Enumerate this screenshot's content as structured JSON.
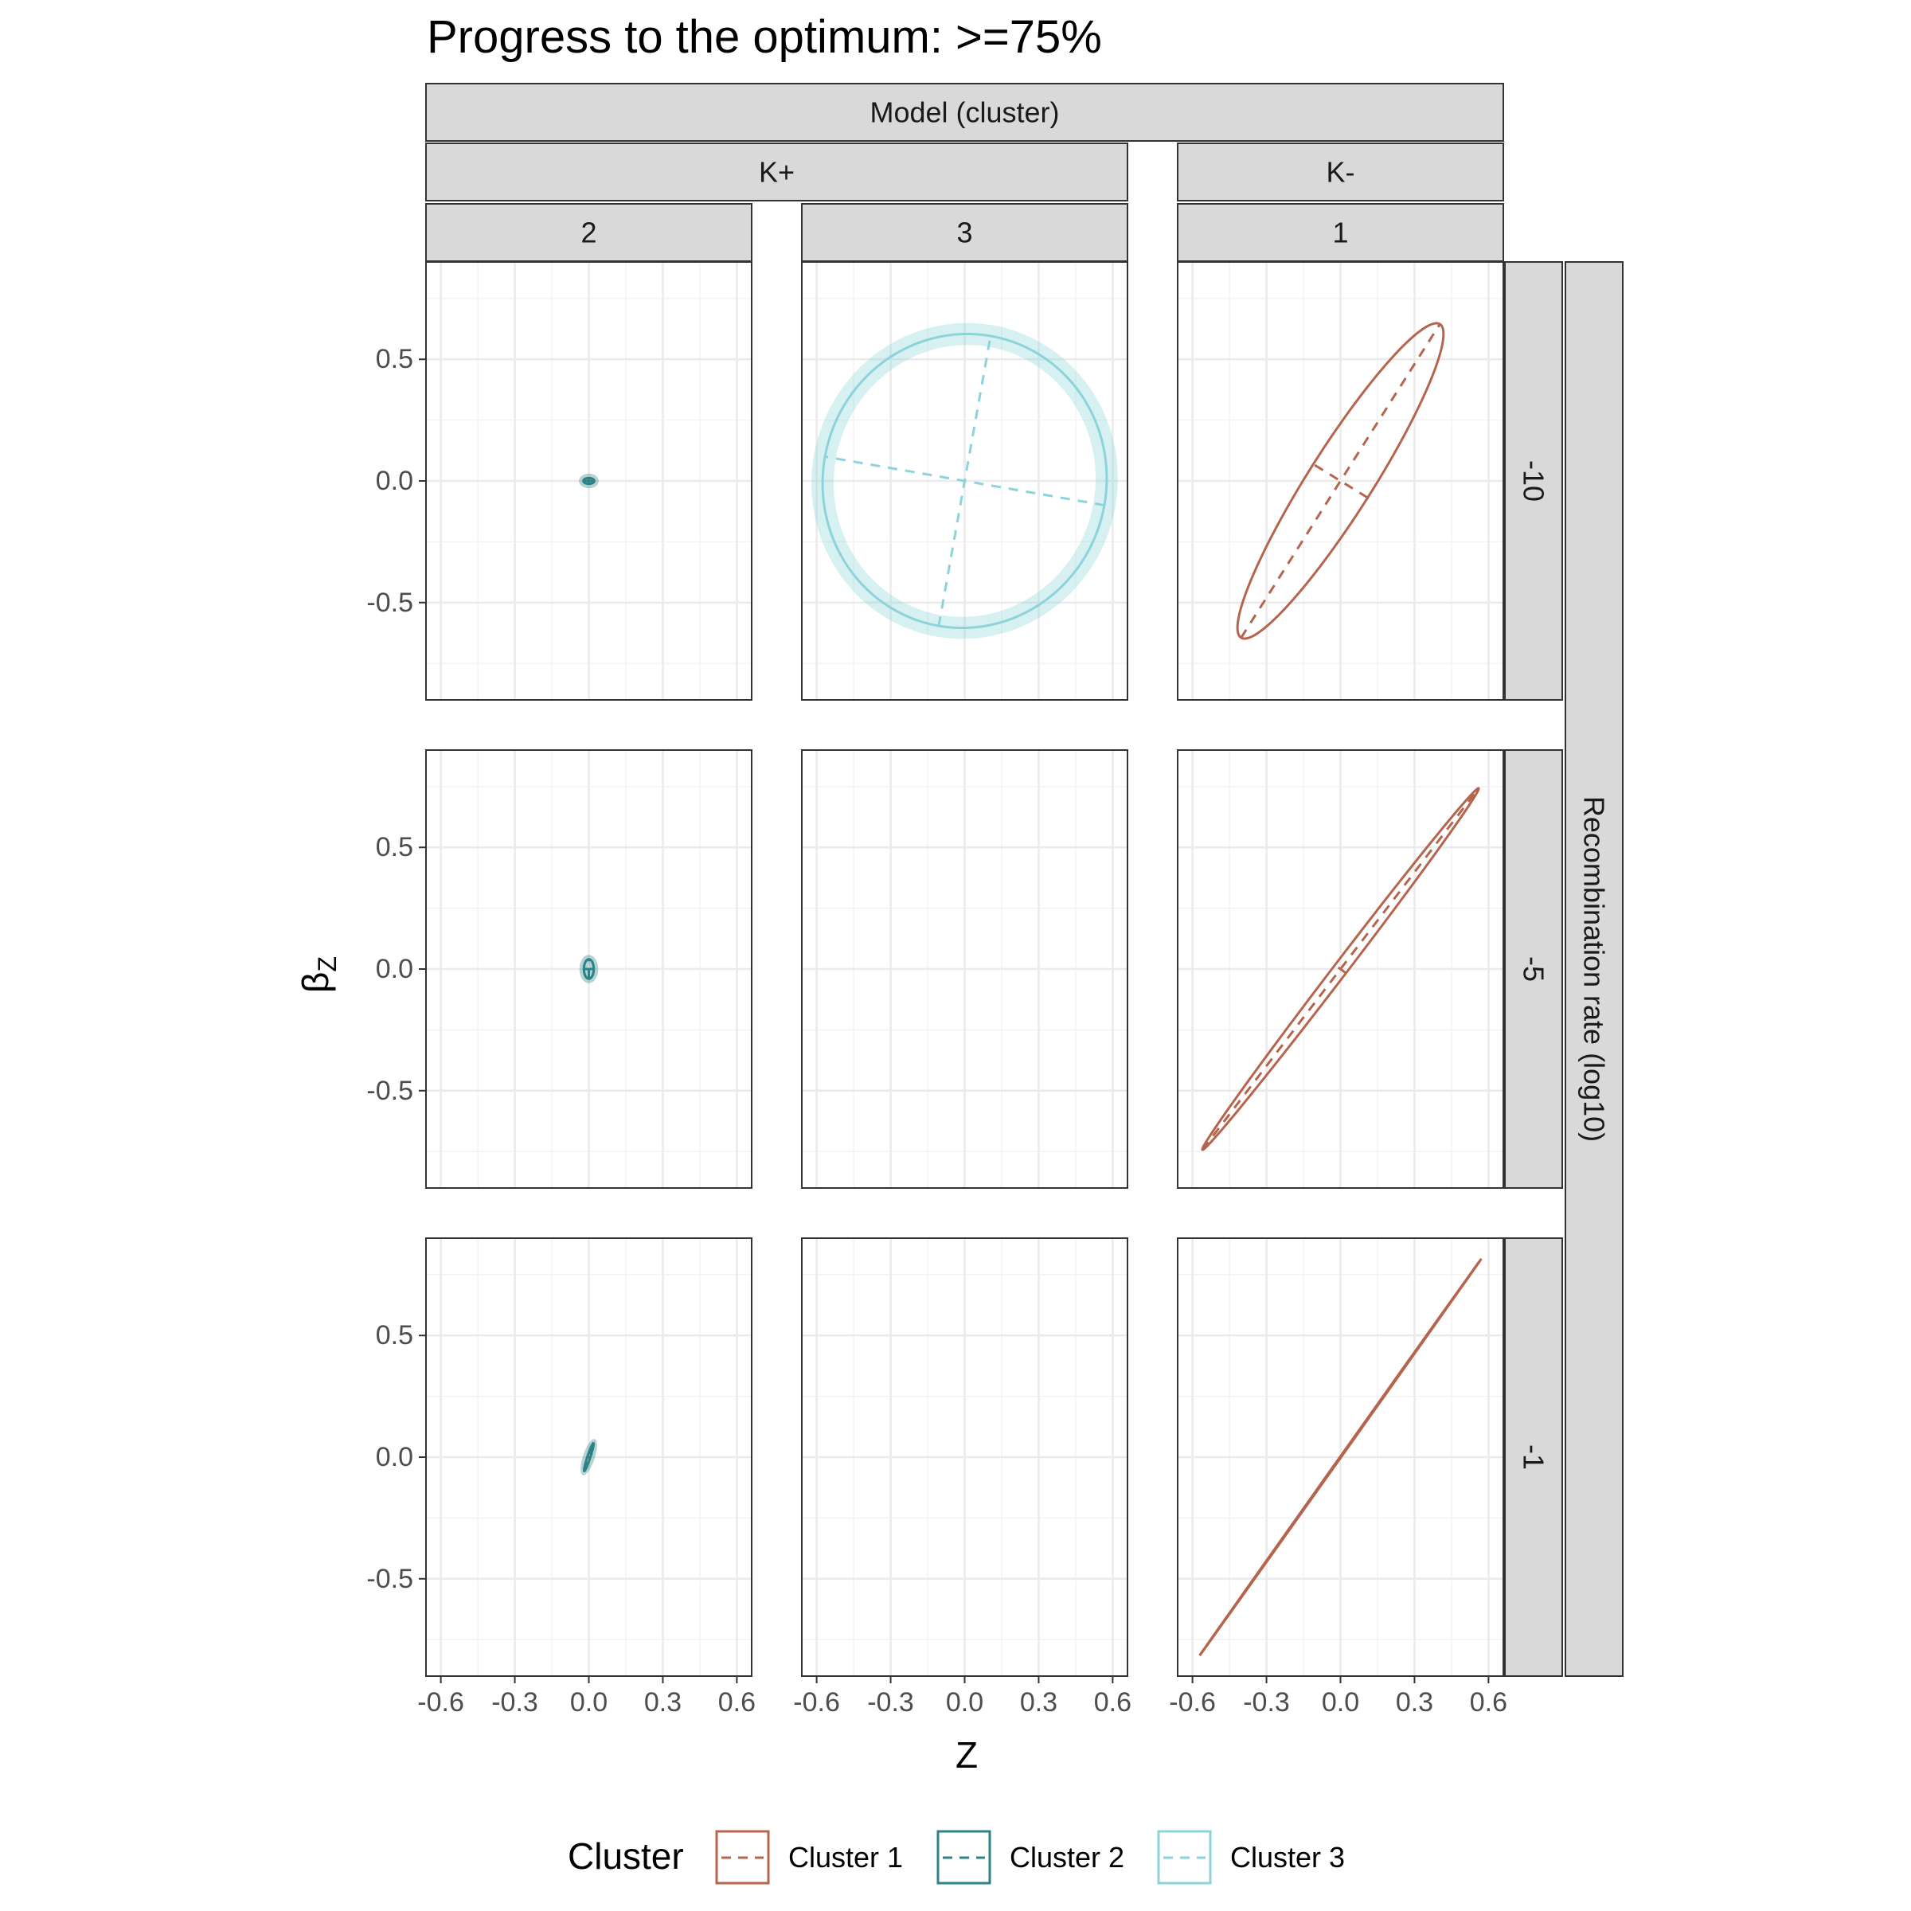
{
  "chart_data": {
    "type": "ellipse-facet",
    "title": "Progress to the optimum: >=75%",
    "xlabel": "Z",
    "ylabel_main": "β",
    "ylabel_sub": "Z",
    "xlim": [
      -0.66,
      0.66
    ],
    "ylim": [
      -0.9,
      0.9
    ],
    "x_ticks": [
      -0.6,
      -0.3,
      0.0,
      0.3,
      0.6
    ],
    "x_tick_labels": [
      "-0.6",
      "-0.3",
      "0.0",
      "0.3",
      "0.6"
    ],
    "y_ticks": [
      -0.5,
      0.0,
      0.5
    ],
    "y_tick_labels": [
      "-0.5",
      "0.0",
      "0.5"
    ],
    "grid": true,
    "top_strip_label": "Model (cluster)",
    "model_strips": [
      {
        "label": "K+",
        "columns": [
          0,
          1
        ]
      },
      {
        "label": "K-",
        "columns": [
          2
        ]
      }
    ],
    "cluster_strips": [
      "2",
      "3",
      "1"
    ],
    "row_strip_title": "Recombination rate (log10)",
    "row_strips": [
      "-10",
      "-5",
      "-1"
    ],
    "legend": {
      "title": "Cluster",
      "position": "bottom",
      "items": [
        {
          "label": "Cluster 1",
          "color": "#B5654D"
        },
        {
          "label": "Cluster 2",
          "color": "#2E8185"
        },
        {
          "label": "Cluster 3",
          "color": "#8DD3DB"
        }
      ]
    },
    "ellipses": [
      {
        "row": 0,
        "col": 0,
        "cluster": 2,
        "cx": 0.0,
        "cy": 0.0,
        "a": 0.022,
        "b": 0.012,
        "angle_deg": 0,
        "band": 0.018
      },
      {
        "row": 0,
        "col": 1,
        "cluster": 3,
        "cx": 0.0,
        "cy": 0.0,
        "a": 0.605,
        "b": 0.575,
        "angle_deg": 80,
        "band": 0.045
      },
      {
        "row": 0,
        "col": 2,
        "cluster": 1,
        "cx": 0.0,
        "cy": 0.0,
        "a": 0.76,
        "b": 0.13,
        "angle_deg": 58,
        "band": 0
      },
      {
        "row": 1,
        "col": 0,
        "cluster": 2,
        "cx": 0.0,
        "cy": 0.0,
        "a": 0.04,
        "b": 0.02,
        "angle_deg": 90,
        "band": 0.018
      },
      {
        "row": 1,
        "col": 2,
        "cluster": 1,
        "cx": 0.0,
        "cy": 0.0,
        "a": 0.93,
        "b": 0.028,
        "angle_deg": 53,
        "band": 0
      },
      {
        "row": 2,
        "col": 0,
        "cluster": 2,
        "cx": 0.0,
        "cy": 0.0,
        "a": 0.06,
        "b": 0.006,
        "angle_deg": 72,
        "band": 0.018
      },
      {
        "row": 2,
        "col": 2,
        "cluster": 1,
        "cx": 0.0,
        "cy": 0.0,
        "a": 0.995,
        "b": 0.002,
        "angle_deg": 55,
        "band": 0
      }
    ]
  }
}
